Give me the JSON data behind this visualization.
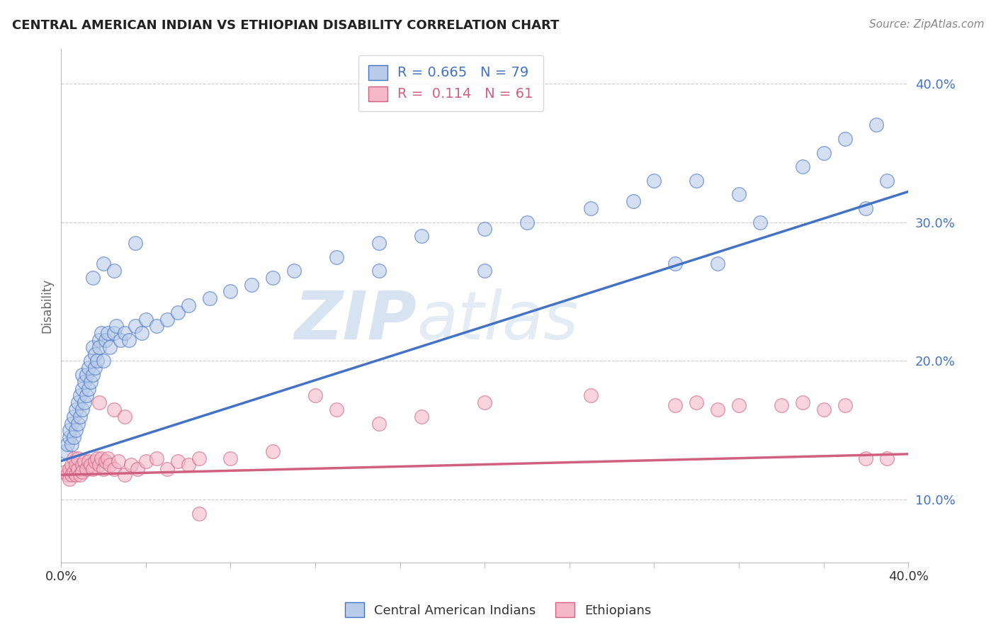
{
  "title": "CENTRAL AMERICAN INDIAN VS ETHIOPIAN DISABILITY CORRELATION CHART",
  "source": "Source: ZipAtlas.com",
  "ylabel": "Disability",
  "xlim": [
    0.0,
    0.4
  ],
  "ylim": [
    0.055,
    0.425
  ],
  "xtick_show": [
    0.0,
    0.4
  ],
  "yticks": [
    0.1,
    0.2,
    0.3,
    0.4
  ],
  "blue_R": 0.665,
  "blue_N": 79,
  "pink_R": 0.114,
  "pink_N": 61,
  "blue_fill": "#B8CCE8",
  "blue_edge": "#4472C4",
  "pink_fill": "#F4B8C8",
  "pink_edge": "#D06080",
  "bg": "#FFFFFF",
  "grid_color": "#CCCCCC",
  "watermark1": "ZIP",
  "watermark2": "atlas",
  "blue_trend_x": [
    0.0,
    0.4
  ],
  "blue_trend_y": [
    0.128,
    0.322
  ],
  "pink_trend_x": [
    0.0,
    0.4
  ],
  "pink_trend_y": [
    0.118,
    0.133
  ],
  "blue_x": [
    0.002,
    0.003,
    0.004,
    0.004,
    0.005,
    0.005,
    0.006,
    0.006,
    0.007,
    0.007,
    0.008,
    0.008,
    0.009,
    0.009,
    0.01,
    0.01,
    0.01,
    0.011,
    0.011,
    0.012,
    0.012,
    0.013,
    0.013,
    0.014,
    0.014,
    0.015,
    0.015,
    0.016,
    0.016,
    0.017,
    0.018,
    0.018,
    0.019,
    0.02,
    0.021,
    0.022,
    0.023,
    0.025,
    0.026,
    0.028,
    0.03,
    0.032,
    0.035,
    0.038,
    0.04,
    0.045,
    0.05,
    0.055,
    0.06,
    0.07,
    0.08,
    0.09,
    0.1,
    0.11,
    0.13,
    0.15,
    0.17,
    0.2,
    0.22,
    0.25,
    0.27,
    0.29,
    0.3,
    0.31,
    0.32,
    0.33,
    0.35,
    0.36,
    0.37,
    0.38,
    0.385,
    0.39,
    0.015,
    0.02,
    0.025,
    0.035,
    0.15,
    0.2,
    0.28
  ],
  "blue_y": [
    0.135,
    0.14,
    0.145,
    0.15,
    0.14,
    0.155,
    0.145,
    0.16,
    0.15,
    0.165,
    0.155,
    0.17,
    0.16,
    0.175,
    0.165,
    0.18,
    0.19,
    0.17,
    0.185,
    0.175,
    0.19,
    0.18,
    0.195,
    0.185,
    0.2,
    0.19,
    0.21,
    0.195,
    0.205,
    0.2,
    0.215,
    0.21,
    0.22,
    0.2,
    0.215,
    0.22,
    0.21,
    0.22,
    0.225,
    0.215,
    0.22,
    0.215,
    0.225,
    0.22,
    0.23,
    0.225,
    0.23,
    0.235,
    0.24,
    0.245,
    0.25,
    0.255,
    0.26,
    0.265,
    0.275,
    0.285,
    0.29,
    0.295,
    0.3,
    0.31,
    0.315,
    0.27,
    0.33,
    0.27,
    0.32,
    0.3,
    0.34,
    0.35,
    0.36,
    0.31,
    0.37,
    0.33,
    0.26,
    0.27,
    0.265,
    0.285,
    0.265,
    0.265,
    0.33
  ],
  "pink_x": [
    0.002,
    0.003,
    0.004,
    0.004,
    0.005,
    0.005,
    0.006,
    0.006,
    0.007,
    0.007,
    0.008,
    0.008,
    0.009,
    0.01,
    0.01,
    0.011,
    0.012,
    0.013,
    0.014,
    0.015,
    0.016,
    0.017,
    0.018,
    0.019,
    0.02,
    0.021,
    0.022,
    0.023,
    0.025,
    0.027,
    0.03,
    0.033,
    0.036,
    0.04,
    0.045,
    0.05,
    0.055,
    0.06,
    0.065,
    0.08,
    0.1,
    0.13,
    0.15,
    0.17,
    0.2,
    0.25,
    0.29,
    0.3,
    0.31,
    0.32,
    0.34,
    0.35,
    0.36,
    0.37,
    0.38,
    0.39,
    0.018,
    0.025,
    0.03,
    0.065,
    0.12
  ],
  "pink_y": [
    0.12,
    0.118,
    0.122,
    0.115,
    0.118,
    0.125,
    0.12,
    0.13,
    0.118,
    0.125,
    0.122,
    0.13,
    0.118,
    0.125,
    0.12,
    0.128,
    0.122,
    0.128,
    0.125,
    0.122,
    0.128,
    0.13,
    0.125,
    0.13,
    0.122,
    0.128,
    0.13,
    0.125,
    0.122,
    0.128,
    0.118,
    0.125,
    0.122,
    0.128,
    0.13,
    0.122,
    0.128,
    0.125,
    0.13,
    0.13,
    0.135,
    0.165,
    0.155,
    0.16,
    0.17,
    0.175,
    0.168,
    0.17,
    0.165,
    0.168,
    0.168,
    0.17,
    0.165,
    0.168,
    0.13,
    0.13,
    0.17,
    0.165,
    0.16,
    0.09,
    0.175
  ]
}
